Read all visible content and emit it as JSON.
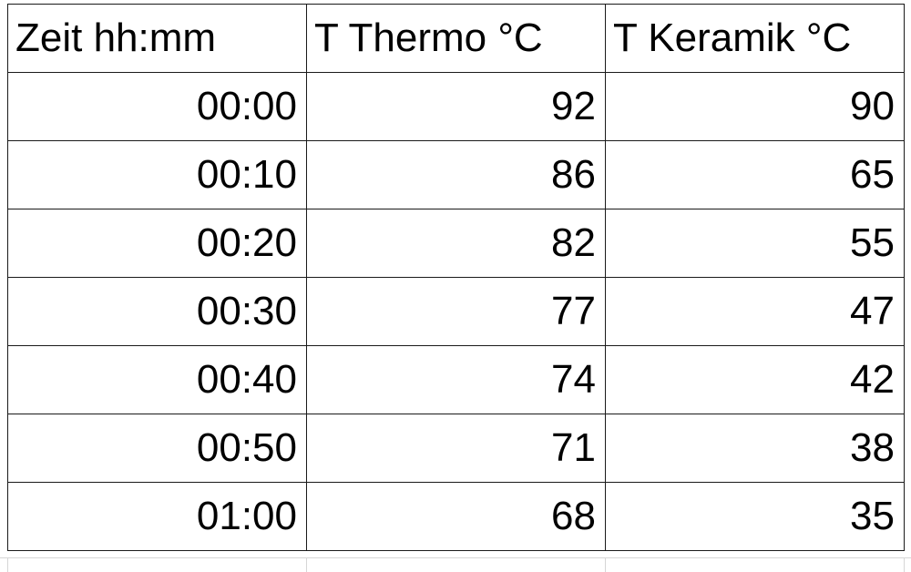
{
  "table": {
    "headers": [
      "Zeit hh:mm",
      "T Thermo °C",
      "T Keramik °C"
    ],
    "rows": [
      [
        "00:00",
        "92",
        "90"
      ],
      [
        "00:10",
        "86",
        "65"
      ],
      [
        "00:20",
        "82",
        "55"
      ],
      [
        "00:30",
        "77",
        "47"
      ],
      [
        "00:40",
        "74",
        "42"
      ],
      [
        "00:50",
        "71",
        "38"
      ],
      [
        "01:00",
        "68",
        "35"
      ]
    ]
  },
  "colors": {
    "border": "#1a1a1a",
    "background": "#ffffff",
    "text": "#000000",
    "gridline": "#d6d6d6"
  }
}
